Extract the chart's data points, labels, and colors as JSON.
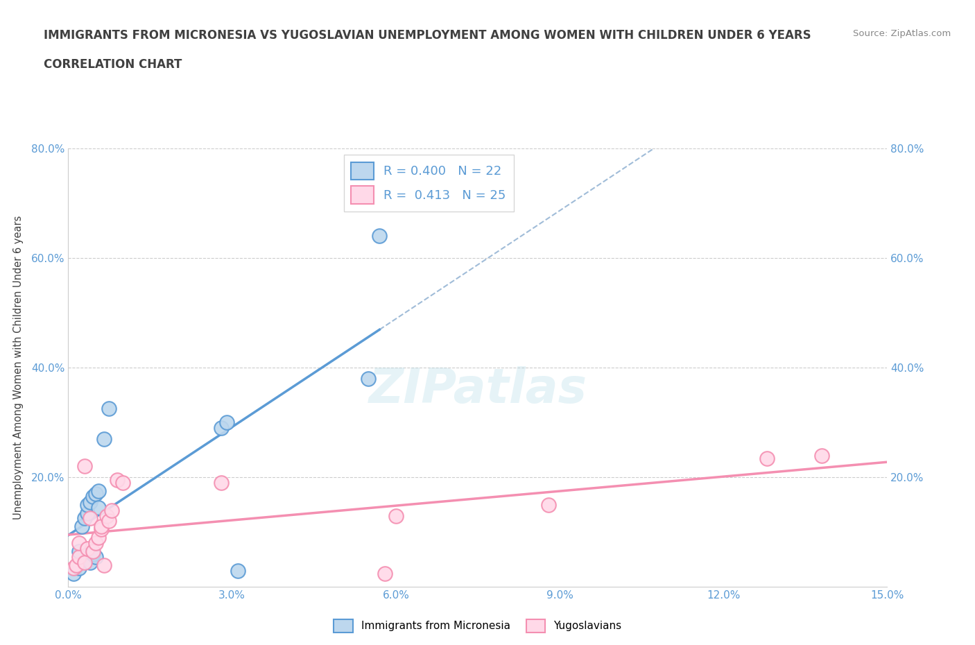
{
  "title": "IMMIGRANTS FROM MICRONESIA VS YUGOSLAVIAN UNEMPLOYMENT AMONG WOMEN WITH CHILDREN UNDER 6 YEARS",
  "subtitle": "CORRELATION CHART",
  "source": "Source: ZipAtlas.com",
  "ylabel": "Unemployment Among Women with Children Under 6 years",
  "xlim": [
    0.0,
    15.0
  ],
  "ylim": [
    0.0,
    80.0
  ],
  "xtick_vals": [
    0.0,
    3.0,
    6.0,
    9.0,
    12.0,
    15.0
  ],
  "xtick_labels": [
    "0.0%",
    "3.0%",
    "6.0%",
    "9.0%",
    "12.0%",
    "15.0%"
  ],
  "ytick_vals": [
    0.0,
    20.0,
    40.0,
    60.0,
    80.0
  ],
  "ytick_labels": [
    "",
    "20.0%",
    "40.0%",
    "60.0%",
    "80.0%"
  ],
  "micronesia_color": "#5b9bd5",
  "micronesia_face": "#bdd7ee",
  "yugoslavia_color": "#f48fb1",
  "yugoslavia_face": "#ffd9e8",
  "R_micronesia": 0.4,
  "N_micronesia": 22,
  "R_yugoslavia": 0.413,
  "N_yugoslavia": 25,
  "micronesia_x": [
    0.1,
    0.2,
    0.2,
    0.25,
    0.3,
    0.35,
    0.35,
    0.4,
    0.4,
    0.45,
    0.45,
    0.5,
    0.5,
    0.55,
    0.55,
    0.65,
    0.75,
    2.8,
    2.9,
    3.1,
    5.5,
    5.7
  ],
  "micronesia_y": [
    2.5,
    3.5,
    6.5,
    11.0,
    12.5,
    13.5,
    15.0,
    4.5,
    15.5,
    6.0,
    16.5,
    5.5,
    17.0,
    14.5,
    17.5,
    27.0,
    32.5,
    29.0,
    30.0,
    3.0,
    38.0,
    64.0
  ],
  "yugoslavia_x": [
    0.1,
    0.15,
    0.2,
    0.2,
    0.3,
    0.3,
    0.35,
    0.4,
    0.45,
    0.5,
    0.55,
    0.6,
    0.6,
    0.65,
    0.7,
    0.75,
    0.8,
    0.9,
    1.0,
    2.8,
    5.8,
    6.0,
    8.8,
    12.8,
    13.8
  ],
  "yugoslavia_y": [
    3.5,
    4.0,
    5.5,
    8.0,
    4.5,
    22.0,
    7.0,
    12.5,
    6.5,
    8.0,
    9.0,
    10.5,
    11.0,
    4.0,
    13.0,
    12.0,
    14.0,
    19.5,
    19.0,
    19.0,
    2.5,
    13.0,
    15.0,
    23.5,
    24.0
  ],
  "watermark": "ZIPatlas",
  "background_color": "#ffffff",
  "grid_color": "#cccccc",
  "axis_color": "#5b9bd5",
  "title_color": "#404040"
}
